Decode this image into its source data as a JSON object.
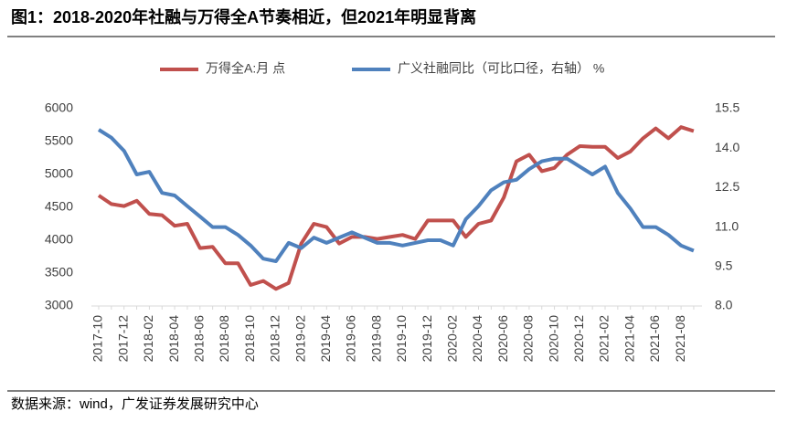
{
  "chart_data": {
    "type": "line",
    "title": "图1：2018-2020年社融与万得全A节奏相近，但2021年明显背离",
    "source": "数据来源：wind，广发证券发展研究中心",
    "categories": [
      "2017-10",
      null,
      "2017-12",
      null,
      "2018-02",
      null,
      "2018-04",
      null,
      "2018-06",
      null,
      "2018-08",
      null,
      "2018-10",
      null,
      "2018-12",
      null,
      "2019-02",
      null,
      "2019-04",
      null,
      "2019-06",
      null,
      "2019-08",
      null,
      "2019-10",
      null,
      "2019-12",
      null,
      "2020-02",
      null,
      "2020-04",
      null,
      "2020-06",
      null,
      "2020-08",
      null,
      "2020-10",
      null,
      "2020-12",
      null,
      "2021-02",
      null,
      "2021-04",
      null,
      "2021-06",
      null,
      "2021-08",
      null
    ],
    "series": [
      {
        "name": "万得全A:月 点",
        "color": "#c0504d",
        "values": [
          4680,
          4550,
          4520,
          4600,
          4400,
          4380,
          4220,
          4250,
          3880,
          3900,
          3650,
          3650,
          3320,
          3380,
          3260,
          3350,
          3950,
          4250,
          4200,
          3950,
          4050,
          4050,
          4020,
          4050,
          4080,
          4020,
          4300,
          4300,
          4300,
          4050,
          4250,
          4300,
          4650,
          5200,
          5300,
          5050,
          5100,
          5300,
          5430,
          5420,
          5420,
          5250,
          5350,
          5550,
          5700,
          5550,
          5720,
          5660
        ]
      },
      {
        "name": "广义社融同比（可比口径，右轴） %",
        "color": "#4f81bd",
        "axis": "y2",
        "values": [
          14.7,
          14.4,
          13.9,
          13.0,
          13.1,
          12.3,
          12.2,
          11.8,
          11.4,
          11.0,
          11.0,
          10.7,
          10.3,
          9.8,
          9.7,
          10.4,
          10.2,
          10.6,
          10.4,
          10.6,
          10.8,
          10.6,
          10.4,
          10.4,
          10.3,
          10.4,
          10.5,
          10.5,
          10.3,
          11.3,
          11.8,
          12.4,
          12.7,
          12.8,
          13.2,
          13.5,
          13.6,
          13.6,
          13.3,
          13.0,
          13.3,
          12.3,
          11.7,
          11.0,
          11.0,
          10.7,
          10.3,
          10.1
        ]
      }
    ],
    "ylim": [
      3000,
      6000
    ],
    "yticks": [
      3000,
      3500,
      4000,
      4500,
      5000,
      5500,
      6000
    ],
    "y2lim": [
      8.0,
      15.5
    ],
    "y2ticks": [
      {
        "value": 8.0,
        "label": "8.0"
      },
      9.5,
      {
        "value": 11.0,
        "label": "11.0"
      },
      12.5,
      {
        "value": 14.0,
        "label": "14.0"
      },
      15.5
    ],
    "legend": "top",
    "grid": false
  }
}
